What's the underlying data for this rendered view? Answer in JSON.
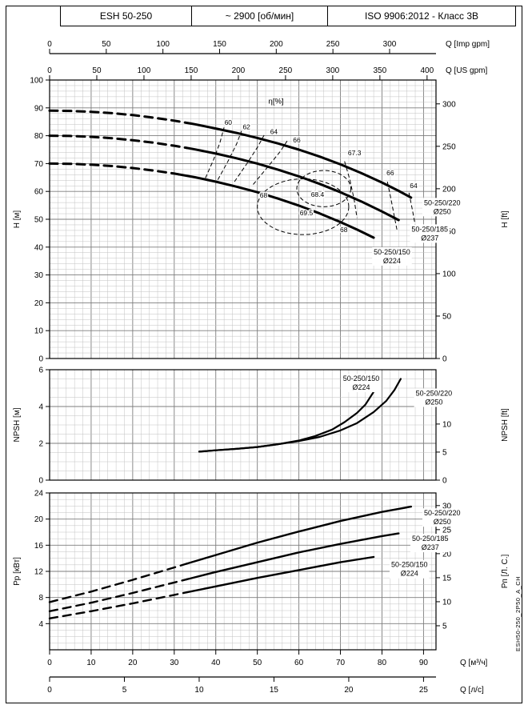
{
  "page": {
    "doc_code": "ESH50-250_2P50_A_CH"
  },
  "header": {
    "model": "ESH 50-250",
    "speed": "~ 2900 [об/мин]",
    "standard": "ISO 9906:2012 - Класс 3В"
  },
  "q_axes": [
    {
      "name": "imp-gpm",
      "title": "Q [Imp gpm]",
      "ticks": [
        0,
        50,
        100,
        150,
        200,
        250,
        300
      ],
      "to_m3h": 0.2727654
    },
    {
      "name": "us-gpm",
      "title": "Q [US gpm]",
      "ticks": [
        0,
        50,
        100,
        150,
        200,
        250,
        300,
        350,
        400
      ],
      "to_m3h": 0.2271247
    },
    {
      "name": "m3h",
      "title": "Q [м³/ч]",
      "ticks": [
        0,
        10,
        20,
        30,
        40,
        50,
        60,
        70,
        80,
        90
      ],
      "to_m3h": 1
    },
    {
      "name": "ls",
      "title": "Q [л/с]",
      "ticks": [
        0,
        5,
        10,
        15,
        20,
        25
      ],
      "to_m3h": 3.6
    }
  ],
  "chart_data": [
    {
      "id": "head",
      "type": "line",
      "x_range_m3h": [
        0,
        93
      ],
      "y_range": [
        0,
        100
      ],
      "y_left": {
        "title": "H [м]",
        "ticks": [
          0,
          10,
          20,
          30,
          40,
          50,
          60,
          70,
          80,
          90,
          100
        ]
      },
      "y_right": {
        "title": "H [ft]",
        "ticks": [
          0,
          50,
          100,
          150,
          200,
          250,
          300
        ],
        "to_left": 0.3048
      },
      "eta_title": {
        "text": "η[%]",
        "q": 54.5,
        "v": 91.5
      },
      "series": [
        {
          "name": "50-250/220 Ø250",
          "dash_until": 34,
          "points": [
            [
              0,
              89
            ],
            [
              5,
              88.9
            ],
            [
              10,
              88.6
            ],
            [
              15,
              88.1
            ],
            [
              20,
              87.4
            ],
            [
              25,
              86.5
            ],
            [
              30,
              85.4
            ],
            [
              35,
              84.1
            ],
            [
              40,
              82.6
            ],
            [
              45,
              81
            ],
            [
              50,
              79.2
            ],
            [
              55,
              77.2
            ],
            [
              60,
              75
            ],
            [
              65,
              72.5
            ],
            [
              70,
              69.7
            ],
            [
              75,
              66.6
            ],
            [
              80,
              63.2
            ],
            [
              84,
              60.2
            ],
            [
              87,
              57.8
            ]
          ]
        },
        {
          "name": "50-250/185 Ø237",
          "dash_until": 33,
          "points": [
            [
              0,
              80
            ],
            [
              5,
              79.9
            ],
            [
              10,
              79.6
            ],
            [
              15,
              79.1
            ],
            [
              20,
              78.4
            ],
            [
              25,
              77.5
            ],
            [
              30,
              76.4
            ],
            [
              35,
              75.1
            ],
            [
              40,
              73.6
            ],
            [
              45,
              71.9
            ],
            [
              50,
              70
            ],
            [
              55,
              67.8
            ],
            [
              60,
              65.4
            ],
            [
              65,
              62.7
            ],
            [
              70,
              59.7
            ],
            [
              75,
              56.4
            ],
            [
              80,
              52.8
            ],
            [
              84,
              49.7
            ]
          ]
        },
        {
          "name": "50-250/150 Ø224",
          "dash_until": 31,
          "points": [
            [
              0,
              70
            ],
            [
              5,
              69.9
            ],
            [
              10,
              69.6
            ],
            [
              15,
              69.1
            ],
            [
              20,
              68.4
            ],
            [
              25,
              67.5
            ],
            [
              30,
              66.4
            ],
            [
              35,
              65.1
            ],
            [
              40,
              63.5
            ],
            [
              45,
              61.7
            ],
            [
              50,
              59.7
            ],
            [
              55,
              57.4
            ],
            [
              60,
              54.9
            ],
            [
              65,
              52.1
            ],
            [
              70,
              49
            ],
            [
              74,
              46.3
            ],
            [
              78,
              43.4
            ]
          ]
        }
      ],
      "eta_contours": [
        {
          "label": "60",
          "label_q": 43,
          "label_v": 84.8,
          "points": [
            [
              37.5,
              64.8
            ],
            [
              39.5,
              71.5
            ],
            [
              41,
              77.5
            ],
            [
              42,
              83
            ]
          ]
        },
        {
          "label": "62",
          "label_q": 47.4,
          "label_v": 83.2,
          "points": [
            [
              40.5,
              64.2
            ],
            [
              43,
              71
            ],
            [
              45,
              77
            ],
            [
              46.2,
              81.7
            ]
          ]
        },
        {
          "label": "64",
          "label_q": 54,
          "label_v": 81.4,
          "points": [
            [
              44.5,
              63.5
            ],
            [
              47.5,
              70
            ],
            [
              50,
              75.8
            ],
            [
              51.7,
              80.4
            ]
          ]
        },
        {
          "label": "66",
          "label_q": 59.5,
          "label_v": 78.4,
          "points": [
            [
              49,
              62.5
            ],
            [
              52.5,
              68.8
            ],
            [
              55.5,
              74.3
            ],
            [
              57.2,
              78.2
            ]
          ]
        },
        {
          "label": "67.3",
          "label_q": 73.4,
          "label_v": 73.8,
          "points": [
            [
              71,
              70.8
            ],
            [
              72.3,
              64
            ],
            [
              73.3,
              57
            ],
            [
              74,
              50.5
            ]
          ]
        },
        {
          "label": "66",
          "label_q": 82,
          "label_v": 66.6,
          "points": [
            [
              81.3,
              63.5
            ],
            [
              82.2,
              57
            ],
            [
              83.1,
              50
            ],
            [
              83.7,
              45.5
            ]
          ]
        },
        {
          "label": "64",
          "label_q": 87.6,
          "label_v": 62,
          "points": [
            [
              86.5,
              59.5
            ],
            [
              87.3,
              53.5
            ],
            [
              88,
              48
            ]
          ]
        }
      ],
      "eta_islands": [
        {
          "cq": 61,
          "cv": 54.5,
          "rq": 11,
          "rv": 10
        },
        {
          "cq": 66,
          "cv": 61,
          "rq": 6.5,
          "rv": 6.5
        }
      ],
      "eta_point_labels": [
        {
          "text": "68",
          "q": 51.5,
          "v": 58.6
        },
        {
          "text": "68.4",
          "q": 64.5,
          "v": 58.9
        },
        {
          "text": "69.5",
          "q": 61.8,
          "v": 52.3
        },
        {
          "text": "68",
          "q": 70.8,
          "v": 46.3
        }
      ],
      "annotations": [
        {
          "lines": [
            "50-250/220",
            "Ø250"
          ],
          "q": 94.5,
          "v": 54.5
        },
        {
          "lines": [
            "50-250/185",
            "Ø237"
          ],
          "q": 91.5,
          "v": 45
        },
        {
          "lines": [
            "50-250/150",
            "Ø224"
          ],
          "q": 82.4,
          "v": 36.8
        }
      ]
    },
    {
      "id": "npsh",
      "type": "line",
      "x_range_m3h": [
        0,
        93
      ],
      "y_range": [
        0,
        6
      ],
      "y_left": {
        "title": "NPSH [м]",
        "ticks": [
          0,
          2,
          4,
          6
        ]
      },
      "y_right": {
        "title": "NPSH [ft]",
        "ticks": [
          0,
          5,
          10,
          15
        ],
        "to_left": 0.3048
      },
      "series": [
        {
          "name": "50-250/150 Ø224",
          "points": [
            [
              36,
              1.55
            ],
            [
              40,
              1.62
            ],
            [
              45,
              1.7
            ],
            [
              50,
              1.8
            ],
            [
              55,
              1.95
            ],
            [
              60,
              2.15
            ],
            [
              64,
              2.4
            ],
            [
              68,
              2.75
            ],
            [
              71,
              3.15
            ],
            [
              74,
              3.65
            ],
            [
              76,
              4.1
            ],
            [
              78,
              4.8
            ],
            [
              79.5,
              5.5
            ]
          ]
        },
        {
          "name": "50-250/220 Ø250",
          "points": [
            [
              36,
              1.55
            ],
            [
              40,
              1.62
            ],
            [
              45,
              1.7
            ],
            [
              50,
              1.8
            ],
            [
              55,
              1.95
            ],
            [
              60,
              2.12
            ],
            [
              65,
              2.35
            ],
            [
              70,
              2.7
            ],
            [
              74,
              3.1
            ],
            [
              78,
              3.7
            ],
            [
              81,
              4.3
            ],
            [
              83,
              4.9
            ],
            [
              84.5,
              5.5
            ]
          ]
        }
      ],
      "annotations": [
        {
          "lines": [
            "50-250/150",
            "Ø224"
          ],
          "q": 75,
          "v": 5.3
        },
        {
          "lines": [
            "50-250/220",
            "Ø250"
          ],
          "q": 92.5,
          "v": 4.5
        }
      ]
    },
    {
      "id": "power",
      "type": "line",
      "x_range_m3h": [
        0,
        93
      ],
      "y_range": [
        0,
        24
      ],
      "y_left": {
        "title": "Pp [кВт]",
        "ticks": [
          4,
          8,
          12,
          16,
          20,
          24
        ]
      },
      "y_right": {
        "title": "Pп [Л. С.]",
        "ticks": [
          5,
          10,
          15,
          20,
          25,
          30
        ],
        "to_left": 0.7355
      },
      "series": [
        {
          "name": "50-250/220 Ø250",
          "dash_until": 33,
          "points": [
            [
              0,
              7.3
            ],
            [
              10,
              8.9
            ],
            [
              20,
              10.7
            ],
            [
              30,
              12.6
            ],
            [
              40,
              14.5
            ],
            [
              50,
              16.4
            ],
            [
              60,
              18.1
            ],
            [
              70,
              19.7
            ],
            [
              80,
              21.1
            ],
            [
              87,
              21.9
            ]
          ]
        },
        {
          "name": "50-250/185 Ø237",
          "dash_until": 33,
          "points": [
            [
              0,
              5.9
            ],
            [
              10,
              7.2
            ],
            [
              20,
              8.7
            ],
            [
              30,
              10.3
            ],
            [
              40,
              11.9
            ],
            [
              50,
              13.4
            ],
            [
              60,
              14.9
            ],
            [
              70,
              16.2
            ],
            [
              80,
              17.4
            ],
            [
              84,
              17.8
            ]
          ]
        },
        {
          "name": "50-250/150 Ø224",
          "dash_until": 33,
          "points": [
            [
              0,
              4.8
            ],
            [
              10,
              5.9
            ],
            [
              20,
              7.1
            ],
            [
              30,
              8.4
            ],
            [
              40,
              9.7
            ],
            [
              50,
              11.0
            ],
            [
              60,
              12.2
            ],
            [
              70,
              13.4
            ],
            [
              78,
              14.2
            ]
          ]
        }
      ],
      "annotations": [
        {
          "lines": [
            "50-250/220",
            "Ø250"
          ],
          "q": 94.5,
          "v": 20.3
        },
        {
          "lines": [
            "50-250/185",
            "Ø237"
          ],
          "q": 91.6,
          "v": 16.4
        },
        {
          "lines": [
            "50-250/150",
            "Ø224"
          ],
          "q": 86.6,
          "v": 12.4
        }
      ]
    }
  ]
}
